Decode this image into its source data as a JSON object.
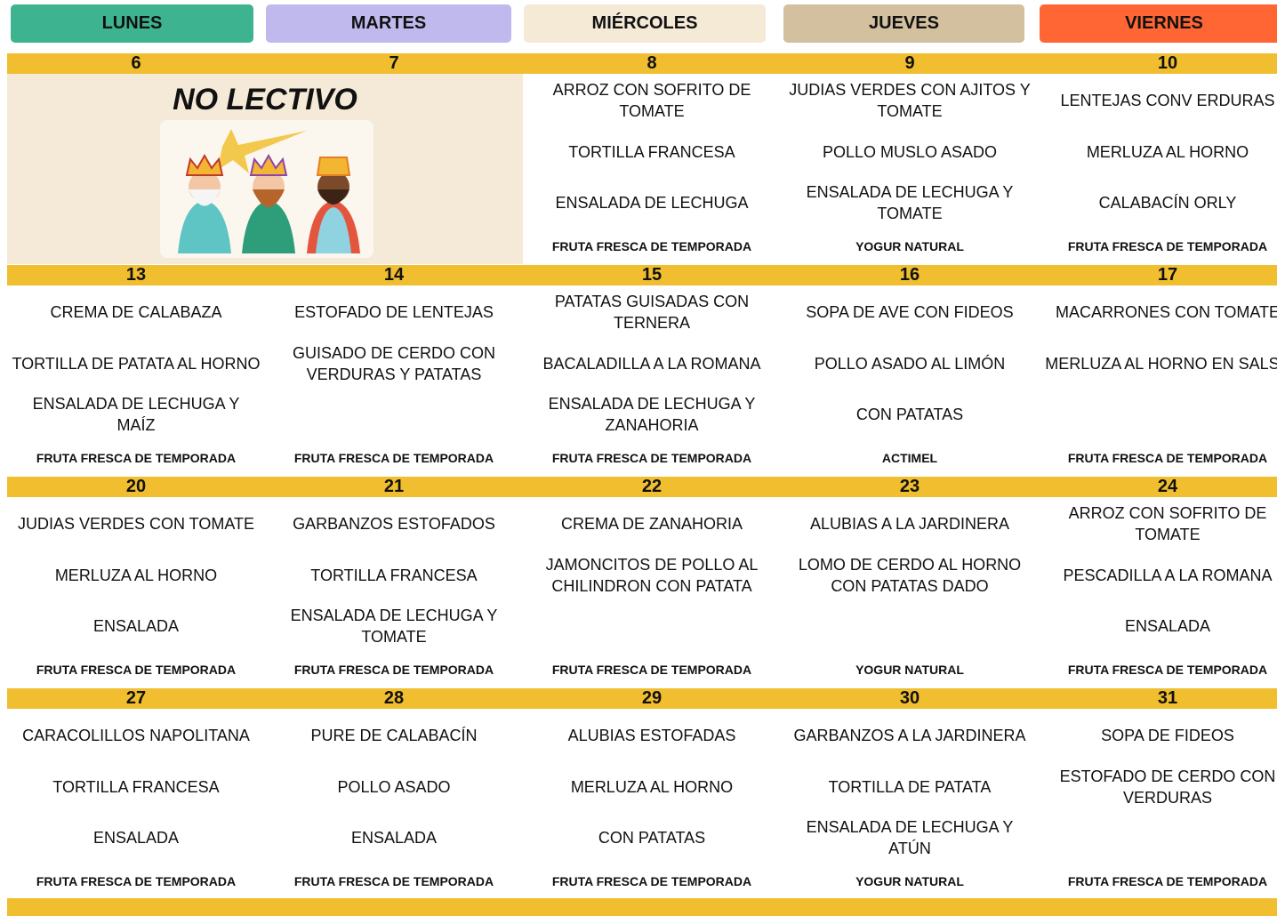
{
  "header": {
    "days": [
      "LUNES",
      "MARTES",
      "MIÉRCOLES",
      "JUEVES",
      "VIERNES"
    ]
  },
  "no_lectivo": "NO LECTIVO",
  "weeks": [
    {
      "dates": [
        "6",
        "7",
        "8",
        "9",
        "10"
      ],
      "days": [
        null,
        null,
        {
          "dishes": [
            "ARROZ CON SOFRITO DE TOMATE",
            "TORTILLA FRANCESA",
            "ENSALADA DE LECHUGA"
          ],
          "dessert": "FRUTA FRESCA DE TEMPORADA"
        },
        {
          "dishes": [
            "JUDIAS VERDES CON AJITOS Y TOMATE",
            "POLLO MUSLO ASADO",
            "ENSALADA DE LECHUGA Y TOMATE"
          ],
          "dessert": "YOGUR NATURAL"
        },
        {
          "dishes": [
            "LENTEJAS CONV ERDURAS",
            "MERLUZA AL HORNO",
            "CALABACÍN ORLY"
          ],
          "dessert": "FRUTA FRESCA DE TEMPORADA"
        }
      ]
    },
    {
      "dates": [
        "13",
        "14",
        "15",
        "16",
        "17"
      ],
      "days": [
        {
          "dishes": [
            "CREMA DE CALABAZA",
            "TORTILLA DE PATATA AL HORNO",
            "ENSALADA DE LECHUGA Y MAÍZ"
          ],
          "dessert": "FRUTA FRESCA DE TEMPORADA"
        },
        {
          "dishes": [
            "ESTOFADO DE LENTEJAS",
            "GUISADO DE CERDO CON VERDURAS Y PATATAS"
          ],
          "dessert": "FRUTA FRESCA DE TEMPORADA"
        },
        {
          "dishes": [
            "PATATAS GUISADAS CON TERNERA",
            "BACALADILLA A LA ROMANA",
            "ENSALADA DE LECHUGA Y ZANAHORIA"
          ],
          "dessert": "FRUTA FRESCA DE TEMPORADA"
        },
        {
          "dishes": [
            "SOPA DE AVE CON FIDEOS",
            "POLLO ASADO AL LIMÓN",
            "CON PATATAS"
          ],
          "dessert": "ACTIMEL"
        },
        {
          "dishes": [
            "MACARRONES CON TOMATE",
            "MERLUZA AL HORNO EN SALSA"
          ],
          "dessert": "FRUTA FRESCA DE TEMPORADA"
        }
      ]
    },
    {
      "dates": [
        "20",
        "21",
        "22",
        "23",
        "24"
      ],
      "days": [
        {
          "dishes": [
            "JUDIAS VERDES CON TOMATE",
            "MERLUZA AL HORNO",
            "ENSALADA"
          ],
          "dessert": "FRUTA FRESCA DE TEMPORADA"
        },
        {
          "dishes": [
            "GARBANZOS ESTOFADOS",
            "TORTILLA FRANCESA",
            "ENSALADA DE LECHUGA Y TOMATE"
          ],
          "dessert": "FRUTA FRESCA DE TEMPORADA"
        },
        {
          "dishes": [
            "CREMA DE ZANAHORIA",
            "JAMONCITOS DE POLLO AL CHILINDRON CON PATATA"
          ],
          "dessert": "FRUTA FRESCA DE TEMPORADA"
        },
        {
          "dishes": [
            "ALUBIAS A LA JARDINERA",
            "LOMO DE CERDO AL HORNO CON PATATAS DADO"
          ],
          "dessert": "YOGUR NATURAL"
        },
        {
          "dishes": [
            "ARROZ CON SOFRITO DE TOMATE",
            "PESCADILLA A LA ROMANA",
            "ENSALADA"
          ],
          "dessert": "FRUTA FRESCA DE TEMPORADA"
        }
      ]
    },
    {
      "dates": [
        "27",
        "28",
        "29",
        "30",
        "31"
      ],
      "days": [
        {
          "dishes": [
            "CARACOLILLOS NAPOLITANA",
            "TORTILLA FRANCESA",
            "ENSALADA"
          ],
          "dessert": "FRUTA FRESCA DE TEMPORADA"
        },
        {
          "dishes": [
            "PURE DE CALABACÍN",
            "POLLO ASADO",
            "ENSALADA"
          ],
          "dessert": "FRUTA FRESCA DE TEMPORADA"
        },
        {
          "dishes": [
            "ALUBIAS ESTOFADAS",
            "MERLUZA AL HORNO",
            "CON PATATAS"
          ],
          "dessert": "FRUTA FRESCA DE TEMPORADA"
        },
        {
          "dishes": [
            "GARBANZOS A LA JARDINERA",
            "TORTILLA DE PATATA",
            "ENSALADA DE LECHUGA Y ATÚN"
          ],
          "dessert": "YOGUR NATURAL"
        },
        {
          "dishes": [
            "SOPA DE FIDEOS",
            "ESTOFADO DE CERDO CON VERDURAS"
          ],
          "dessert": "FRUTA FRESCA DE TEMPORADA"
        }
      ]
    }
  ]
}
